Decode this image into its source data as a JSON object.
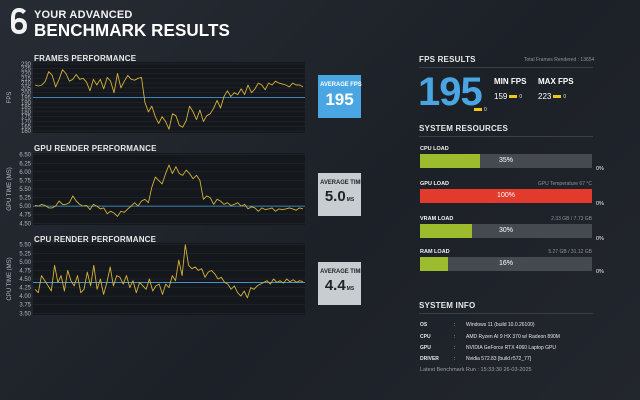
{
  "header": {
    "title_small": "YOUR ADVANCED",
    "title_large": "BENCHMARK RESULTS"
  },
  "charts": {
    "fps": {
      "title": "FRAMES PERFORMANCE",
      "ylabel": "FPS",
      "ticks": [
        "230",
        "225",
        "220",
        "215",
        "210",
        "205",
        "200",
        "195",
        "190",
        "185",
        "180",
        "175",
        "170",
        "165",
        "160"
      ],
      "ylim": [
        158,
        232
      ],
      "avg": 195,
      "badge_label": "AVERAGE FPS",
      "badge_value": "195",
      "badge_unit": "",
      "series": [
        208,
        207,
        208,
        212,
        222,
        218,
        206,
        214,
        224,
        220,
        212,
        214,
        219,
        214,
        215,
        211,
        202,
        214,
        208,
        214,
        204,
        216,
        212,
        200,
        220,
        205,
        212,
        218,
        214,
        213,
        215,
        216,
        190,
        180,
        186,
        175,
        168,
        175,
        170,
        162,
        178,
        176,
        166,
        164,
        171,
        186,
        180,
        172,
        182,
        170,
        176,
        178,
        184,
        192,
        184,
        196,
        202,
        196,
        200,
        198,
        204,
        198,
        208,
        200,
        204,
        210,
        208,
        203,
        210,
        208,
        212,
        210,
        209,
        208,
        206,
        210,
        208,
        208,
        206
      ]
    },
    "gpu": {
      "title": "GPU RENDER PERFORMANCE",
      "ylabel": "GPU TIME (MS)",
      "ticks": [
        "6.50",
        "6.25",
        "6.00",
        "5.75",
        "5.50",
        "5.25",
        "5.00",
        "4.75",
        "4.50"
      ],
      "ylim": [
        4.45,
        6.55
      ],
      "avg": 5.0,
      "badge_label": "AVERAGE TIME",
      "badge_value": "5.0",
      "badge_unit": "MS",
      "series": [
        5.02,
        5.0,
        5.05,
        5.02,
        4.95,
        4.95,
        5.0,
        5.15,
        5.05,
        5.05,
        5.1,
        5.3,
        5.15,
        5.05,
        5.0,
        5.02,
        4.9,
        5.05,
        5.0,
        4.92,
        4.95,
        4.78,
        4.85,
        4.8,
        4.7,
        4.85,
        4.82,
        4.92,
        5.0,
        5.1,
        5.0,
        5.15,
        5.2,
        5.1,
        5.55,
        5.85,
        5.75,
        5.65,
        5.95,
        6.2,
        5.95,
        6.15,
        5.95,
        5.9,
        6.05,
        5.95,
        5.8,
        5.9,
        5.75,
        5.2,
        5.3,
        5.25,
        5.05,
        5.2,
        5.15,
        5.05,
        5.1,
        5.02,
        5.05,
        5.1,
        5.0,
        5.05,
        4.92,
        4.98,
        4.95,
        4.85,
        4.95,
        4.9,
        4.92,
        4.95,
        4.85,
        4.92,
        4.9,
        4.92,
        4.95,
        4.92,
        4.88,
        4.95,
        4.92
      ]
    },
    "cpu": {
      "title": "CPU RENDER PERFORMANCE",
      "ylabel": "CPU TIME (MS)",
      "ticks": [
        "5.50",
        "5.25",
        "5.00",
        "4.75",
        "4.50",
        "4.25",
        "4.00",
        "3.75",
        "3.50"
      ],
      "ylim": [
        3.45,
        5.55
      ],
      "avg": 4.4,
      "badge_label": "AVERAGE TIME",
      "badge_value": "4.4",
      "badge_unit": "MS",
      "series": [
        4.2,
        4.1,
        4.6,
        4.45,
        4.3,
        4.15,
        4.9,
        4.4,
        4.6,
        4.15,
        4.75,
        4.45,
        4.3,
        4.6,
        4.1,
        4.2,
        4.7,
        4.3,
        4.9,
        4.2,
        4.5,
        4.05,
        4.4,
        4.85,
        4.3,
        4.6,
        4.55,
        4.35,
        4.6,
        4.25,
        4.45,
        4.1,
        4.4,
        4.3,
        4.2,
        4.5,
        4.15,
        4.3,
        4.35,
        4.05,
        4.35,
        4.25,
        4.6,
        4.45,
        5.05,
        4.6,
        5.5,
        4.9,
        4.8,
        4.85,
        4.75,
        4.8,
        4.55,
        4.7,
        4.75,
        4.65,
        4.5,
        4.55,
        4.4,
        4.35,
        4.2,
        4.3,
        4.1,
        4.0,
        4.15,
        3.95,
        4.25,
        4.2,
        4.3,
        4.35,
        4.4,
        4.45,
        4.35,
        4.5,
        4.4,
        4.45,
        4.38,
        4.5,
        4.42,
        4.48,
        4.4,
        4.45,
        4.42
      ]
    }
  },
  "fps_results": {
    "title": "FPS RESULTS",
    "total_frames": "Total Frames Rendered : 13654",
    "value": "195",
    "value_change": "0",
    "min_label": "MIN FPS",
    "min_value": "159",
    "min_change": "0",
    "max_label": "MAX FPS",
    "max_value": "223",
    "max_change": "0"
  },
  "system_resources": {
    "title": "SYSTEM RESOURCES",
    "items": [
      {
        "label": "CPU LOAD",
        "detail": "",
        "value": "35%",
        "fraction": 0.35,
        "color": "#9cbc2e",
        "change": "0%"
      },
      {
        "label": "GPU LOAD",
        "detail": "GPU Temperature 67 °C",
        "value": "100%",
        "fraction": 1.0,
        "color": "#e23a2c",
        "change": "0%"
      },
      {
        "label": "VRAM LOAD",
        "detail": "2.33 GB / 7.73 GB",
        "value": "30%",
        "fraction": 0.3,
        "color": "#9cbc2e",
        "change": "0%"
      },
      {
        "label": "RAM LOAD",
        "detail": "5.27 GB / 31.12 GB",
        "value": "16%",
        "fraction": 0.16,
        "color": "#9cbc2e",
        "change": "0%"
      }
    ]
  },
  "system_info": {
    "title": "SYSTEM INFO",
    "rows": [
      {
        "key": "OS",
        "value": "Windows 11 (build 10.0.26100)"
      },
      {
        "key": "CPU",
        "value": "AMD Ryzen AI 9 HX 370 w/ Radeon 890M"
      },
      {
        "key": "GPU",
        "value": "NVIDIA GeForce RTX 4060 Laptop GPU"
      },
      {
        "key": "DRIVER",
        "value": "Nvidia 572.83 [build r572_77]"
      }
    ],
    "latest_run": "Latest Benchmark Run : 15:33:30 26-03-2025"
  },
  "colors": {
    "accent": "#4aa6e3",
    "line": "#d4b13a",
    "avg_line": "#4aa6e3",
    "plot_bg": "#14171b",
    "good": "#9cbc2e",
    "bad": "#e23a2c"
  }
}
